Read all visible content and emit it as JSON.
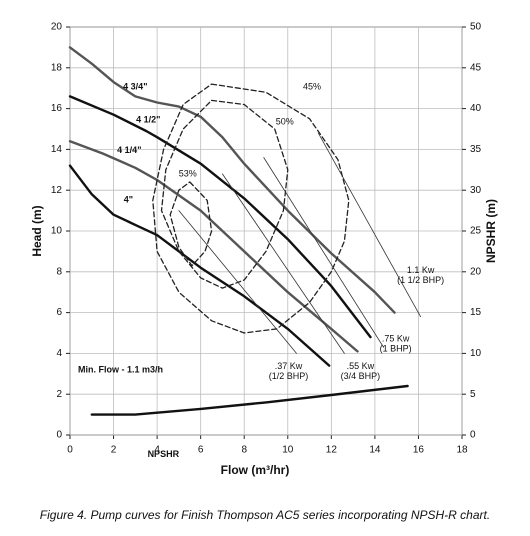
{
  "chart_data": {
    "type": "line",
    "caption": "Figure 4. Pump curves for Finish Thompson AC5 series incorporating NPSH-R chart.",
    "x_label": "Flow (m³/hr)",
    "y_label": "Head (m)",
    "y2_label": "NPSHR (m)",
    "xlim": [
      0,
      18
    ],
    "xticks": [
      0,
      2,
      4,
      6,
      8,
      10,
      12,
      14,
      16,
      18
    ],
    "ylim": [
      0,
      20
    ],
    "yticks": [
      0,
      2,
      4,
      6,
      8,
      10,
      12,
      14,
      16,
      18,
      20
    ],
    "y2lim": [
      0,
      50
    ],
    "y2ticks": [
      0,
      5,
      10,
      15,
      20,
      25,
      30,
      35,
      40,
      45,
      50
    ],
    "grid": true,
    "annotations": [
      {
        "text": "Min. Flow - 1.1 m3/h"
      }
    ],
    "series": [
      {
        "name": "4 3/4\"",
        "color": "#555555",
        "weight": "heavy",
        "dash": false,
        "x": [
          0,
          1,
          2,
          3,
          4,
          5,
          6,
          7,
          8,
          10,
          12,
          14,
          14.9
        ],
        "values": [
          19,
          18.2,
          17.3,
          16.6,
          16.3,
          16.1,
          15.6,
          14.6,
          13.3,
          11,
          8.9,
          7,
          6
        ]
      },
      {
        "name": "4 1/2\"",
        "color": "#111111",
        "weight": "heavy",
        "dash": false,
        "x": [
          0,
          2,
          3.5,
          4,
          6,
          8,
          10,
          12,
          13.8
        ],
        "values": [
          16.6,
          15.7,
          14.9,
          14.6,
          13.3,
          11.6,
          9.6,
          7.3,
          4.8
        ]
      },
      {
        "name": "4 1/4\"",
        "color": "#555555",
        "weight": "heavy",
        "dash": false,
        "x": [
          0,
          1.5,
          3,
          4,
          6,
          8,
          10,
          12,
          13.2
        ],
        "values": [
          14.4,
          13.8,
          13.1,
          12.5,
          11,
          9,
          7,
          5.2,
          4.1
        ]
      },
      {
        "name": "4\"",
        "color": "#111111",
        "weight": "heavy",
        "dash": false,
        "x": [
          0,
          1,
          2,
          3,
          4,
          6,
          8,
          10,
          11.9
        ],
        "values": [
          13.2,
          11.8,
          10.8,
          10.3,
          9.8,
          8.2,
          6.8,
          5.2,
          3.4
        ]
      },
      {
        "name": "NPSHR",
        "color": "#111111",
        "weight": "heavy",
        "dash": false,
        "axis": "y2",
        "x": [
          1,
          3,
          6,
          9,
          12,
          15.5
        ],
        "values": [
          2.5,
          2.5,
          3.2,
          4,
          4.9,
          6
        ]
      },
      {
        "name": "45%",
        "color": "#222222",
        "weight": "medium",
        "dash": true,
        "x": [
          6.5,
          9,
          11,
          12.3,
          12.8,
          12.6,
          12,
          11,
          9.5,
          8,
          6.5,
          5,
          4,
          3.8,
          4.3,
          5.2,
          6.5
        ],
        "values": [
          17.2,
          16.8,
          15.5,
          13.5,
          11.5,
          9.5,
          8,
          6.5,
          5.2,
          5,
          5.6,
          7,
          9,
          11.5,
          14,
          16.2,
          17.2
        ]
      },
      {
        "name": "50%",
        "color": "#222222",
        "weight": "medium",
        "dash": true,
        "x": [
          6.5,
          8,
          9.4,
          10,
          9.8,
          9,
          8,
          7,
          6,
          5,
          4.2,
          4.4,
          5.2,
          6.5
        ],
        "values": [
          16.4,
          16.2,
          15,
          13,
          11,
          9,
          7.6,
          7.2,
          7.7,
          9,
          11,
          13,
          15,
          16.4
        ]
      },
      {
        "name": "53%",
        "color": "#222222",
        "weight": "medium",
        "dash": true,
        "x": [
          5.5,
          6.3,
          6.5,
          6.2,
          5.6,
          5,
          4.6,
          5,
          5.5
        ],
        "values": [
          12.4,
          11.5,
          10,
          9,
          8.3,
          9.2,
          10.8,
          12,
          12.4
        ]
      },
      {
        "name": "1.1 Kw",
        "subname": "(1 1/2 BHP)",
        "color": "#333333",
        "weight": "thin",
        "dash": false,
        "x": [
          11.4,
          16.1
        ],
        "values": [
          14.8,
          5.8
        ]
      },
      {
        "name": ".75 Kw",
        "subname": "(1 BHP)",
        "color": "#333333",
        "weight": "thin",
        "dash": false,
        "x": [
          8.9,
          14.4
        ],
        "values": [
          13.6,
          4.3
        ]
      },
      {
        "name": ".55 Kw",
        "subname": "(3/4 BHP)",
        "color": "#333333",
        "weight": "thin",
        "dash": false,
        "x": [
          7,
          12.6
        ],
        "values": [
          12.8,
          4
        ]
      },
      {
        "name": ".37 Kw",
        "subname": "(1/2 BHP)",
        "color": "#333333",
        "weight": "thin",
        "dash": false,
        "x": [
          5,
          10.4
        ],
        "values": [
          11,
          4
        ]
      }
    ]
  }
}
